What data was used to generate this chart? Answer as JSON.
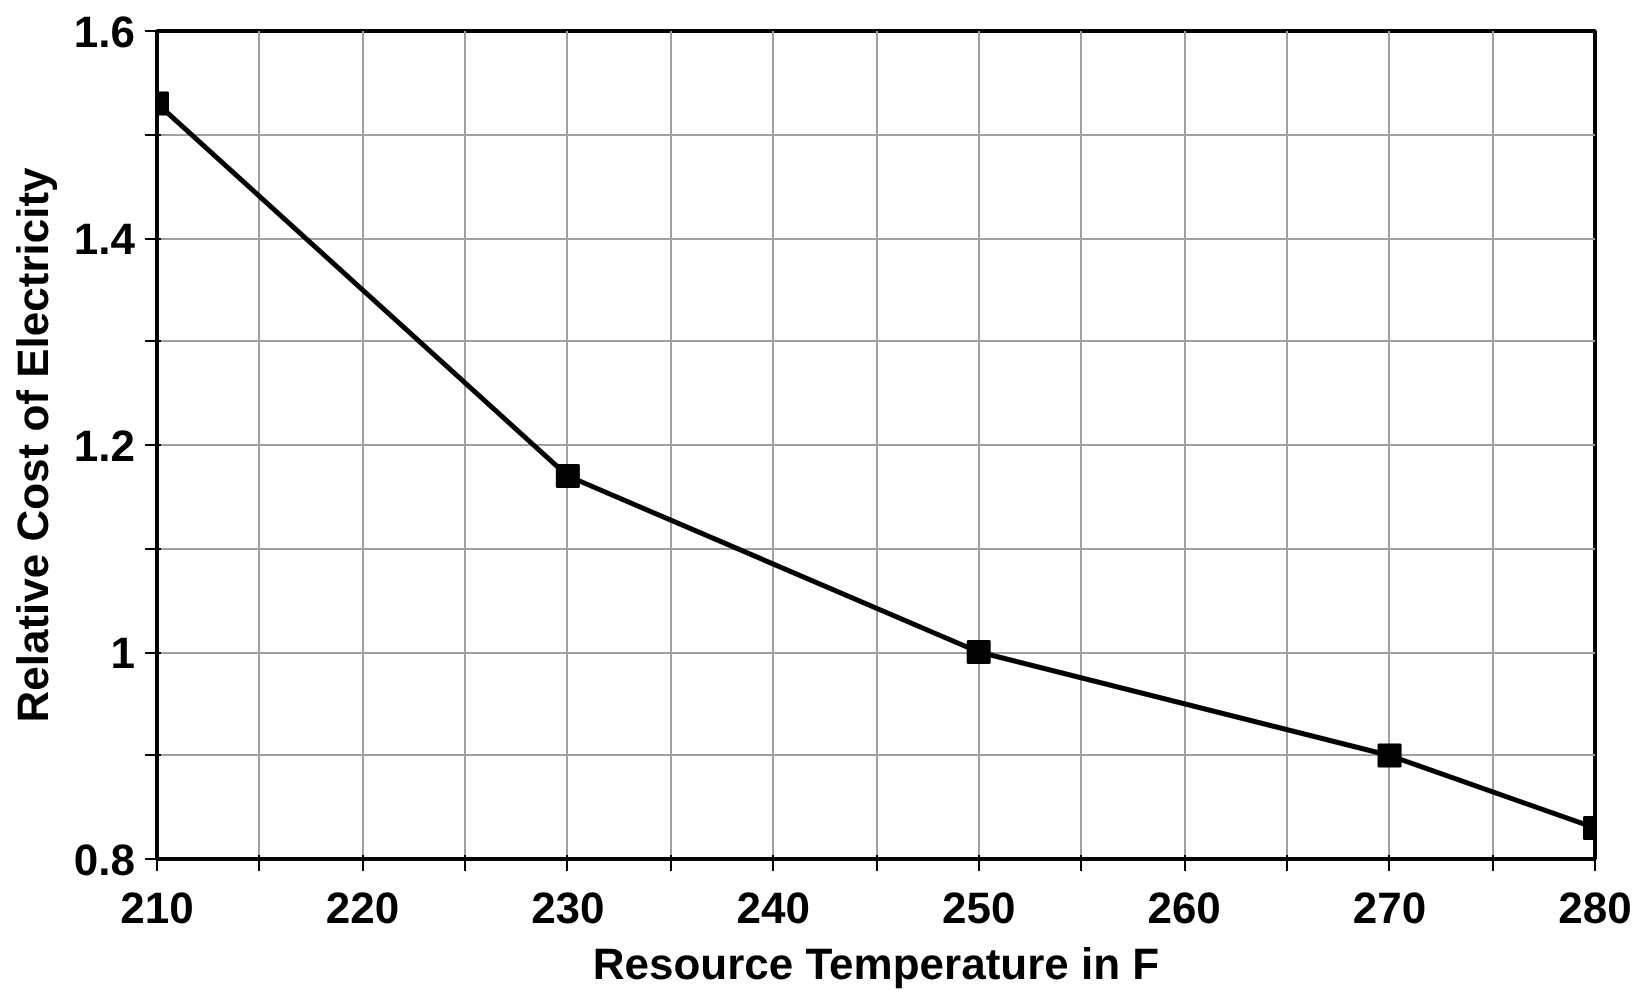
{
  "chart_data": {
    "type": "line",
    "xlabel": "Resource Temperature in F",
    "ylabel": "Relative Cost of Electricity",
    "x": [
      210,
      230,
      250,
      270,
      280
    ],
    "series": [
      {
        "color": "#000000",
        "values": [
          1.53,
          1.17,
          1.0,
          0.9,
          0.83
        ]
      }
    ],
    "xlim": [
      210,
      280
    ],
    "xticks": [
      210,
      {
        "value": 215,
        "label": null
      },
      220,
      {
        "value": 225,
        "label": null
      },
      230,
      {
        "value": 235,
        "label": null
      },
      240,
      {
        "value": 245,
        "label": null
      },
      250,
      {
        "value": 255,
        "label": null
      },
      260,
      {
        "value": 265,
        "label": null
      },
      270,
      {
        "value": 275,
        "label": null
      },
      280
    ],
    "ylim": [
      0.8,
      1.6
    ],
    "yticks": [
      {
        "value": 0.8,
        "label": "0.8"
      },
      {
        "value": 0.9,
        "label": null
      },
      {
        "value": 1.0,
        "label": "1"
      },
      {
        "value": 1.1,
        "label": null
      },
      {
        "value": 1.2,
        "label": "1.2"
      },
      {
        "value": 1.3,
        "label": null
      },
      {
        "value": 1.4,
        "label": "1.4"
      },
      {
        "value": 1.5,
        "label": null
      },
      {
        "value": 1.6,
        "label": "1.6"
      }
    ],
    "grid": true,
    "marker": "square",
    "line_style": "solid"
  }
}
